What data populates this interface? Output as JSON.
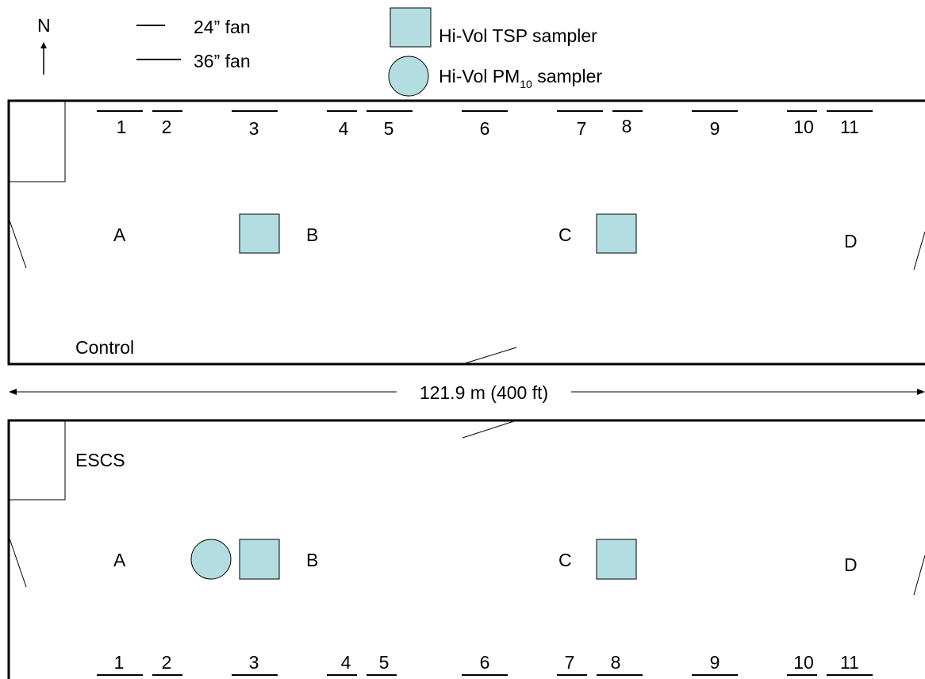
{
  "compass": {
    "label": "N"
  },
  "legend": {
    "fan24_label": "24” fan",
    "fan36_label": "36” fan",
    "tsp_label": "Hi-Vol TSP sampler",
    "pm10_label_prefix": "Hi-Vol PM",
    "pm10_label_sub": "10",
    "pm10_label_suffix": " sampler"
  },
  "distance": {
    "label": "121.9 m (400 ft)"
  },
  "colors": {
    "sampler_fill": "#b3dde0",
    "line": "#000000"
  },
  "barns": [
    {
      "name": "Control",
      "fans": [
        {
          "label": "1",
          "type": "36"
        },
        {
          "label": "2",
          "type": "24"
        },
        {
          "label": "3",
          "type": "36"
        },
        {
          "label": "4",
          "type": "24"
        },
        {
          "label": "5",
          "type": "36"
        },
        {
          "label": "6",
          "type": "36"
        },
        {
          "label": "7",
          "type": "36"
        },
        {
          "label": "8",
          "type": "24"
        },
        {
          "label": "9",
          "type": "36"
        },
        {
          "label": "10",
          "type": "24"
        },
        {
          "label": "11",
          "type": "36"
        }
      ],
      "locations": [
        "A",
        "B",
        "C",
        "D"
      ],
      "samplers": [
        {
          "type": "tsp",
          "between": "A-B"
        },
        {
          "type": "tsp",
          "at": "C"
        }
      ]
    },
    {
      "name": "ESCS",
      "fans": [
        {
          "label": "1",
          "type": "36"
        },
        {
          "label": "2",
          "type": "24"
        },
        {
          "label": "3",
          "type": "36"
        },
        {
          "label": "4",
          "type": "24"
        },
        {
          "label": "5",
          "type": "24"
        },
        {
          "label": "6",
          "type": "36"
        },
        {
          "label": "7",
          "type": "24"
        },
        {
          "label": "8",
          "type": "36"
        },
        {
          "label": "9",
          "type": "36"
        },
        {
          "label": "10",
          "type": "24"
        },
        {
          "label": "11",
          "type": "36"
        }
      ],
      "locations": [
        "A",
        "B",
        "C",
        "D"
      ],
      "samplers": [
        {
          "type": "pm10",
          "between": "A-B"
        },
        {
          "type": "tsp",
          "between": "A-B"
        },
        {
          "type": "tsp",
          "at": "C"
        }
      ]
    }
  ]
}
